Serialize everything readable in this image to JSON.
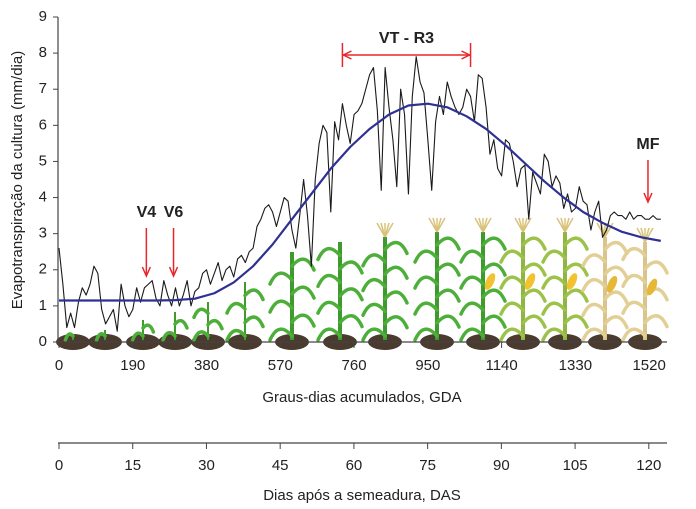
{
  "chart_data": {
    "type": "line",
    "ylabel": "Evapotranspiração da cultura (mm/dia)",
    "xlabel": "Graus-dias acumulados, GDA",
    "xlim": [
      0,
      1566
    ],
    "xticks": [
      0,
      190,
      380,
      570,
      760,
      950,
      1140,
      1330,
      1520
    ],
    "ylim": [
      0,
      9
    ],
    "yticks": [
      0,
      1,
      2,
      3,
      4,
      5,
      6,
      7,
      8,
      9
    ],
    "x2": {
      "label": "Dias após a semeadura, DAS",
      "xlim": [
        0,
        123.7
      ],
      "xticks": [
        0,
        15,
        30,
        45,
        60,
        75,
        90,
        105,
        120
      ]
    },
    "series": [
      {
        "color": "#1a1a1a",
        "x": [
          0,
          10,
          20,
          30,
          40,
          50,
          60,
          70,
          80,
          90,
          100,
          110,
          120,
          130,
          140,
          150,
          160,
          170,
          180,
          190,
          200,
          210,
          220,
          230,
          240,
          250,
          260,
          270,
          280,
          290,
          300,
          310,
          320,
          330,
          340,
          350,
          360,
          370,
          380,
          390,
          400,
          410,
          420,
          430,
          440,
          450,
          460,
          470,
          480,
          490,
          500,
          510,
          520,
          530,
          540,
          550,
          560,
          570,
          580,
          590,
          600,
          610,
          620,
          630,
          640,
          650,
          660,
          670,
          680,
          690,
          700,
          710,
          720,
          730,
          740,
          750,
          760,
          770,
          780,
          790,
          800,
          810,
          820,
          830,
          840,
          850,
          860,
          870,
          880,
          890,
          900,
          910,
          920,
          930,
          940,
          950,
          960,
          970,
          980,
          990,
          1000,
          1010,
          1020,
          1030,
          1040,
          1050,
          1060,
          1070,
          1080,
          1090,
          1100,
          1110,
          1120,
          1130,
          1140,
          1150,
          1160,
          1170,
          1180,
          1190,
          1200,
          1210,
          1220,
          1230,
          1240,
          1250,
          1260,
          1270,
          1280,
          1290,
          1300,
          1310,
          1320,
          1330,
          1340,
          1350,
          1360,
          1370,
          1380,
          1390,
          1400,
          1410,
          1420,
          1430,
          1440,
          1450,
          1460,
          1470,
          1480,
          1490,
          1500,
          1510,
          1520,
          1530,
          1540,
          1550
        ],
        "values": [
          2.6,
          1.6,
          0.4,
          0.8,
          0.4,
          1.1,
          1.5,
          1.3,
          1.6,
          2.1,
          1.9,
          0.9,
          0.5,
          0.7,
          0.9,
          0.3,
          1.6,
          1.0,
          0.7,
          0.9,
          1.5,
          1.1,
          1.5,
          1.6,
          1.7,
          1.2,
          1.0,
          1.7,
          1.3,
          1.0,
          1.5,
          1.0,
          1.3,
          1.7,
          1.0,
          1.4,
          1.5,
          1.9,
          2.0,
          1.6,
          1.9,
          2.2,
          1.7,
          2.0,
          2.1,
          1.8,
          2.3,
          2.4,
          2.2,
          2.5,
          2.6,
          3.2,
          3.4,
          3.7,
          3.8,
          3.6,
          3.2,
          3.6,
          4.0,
          3.9,
          3.1,
          2.6,
          3.5,
          4.5,
          3.5,
          2.1,
          4.5,
          5.5,
          6.0,
          5.8,
          3.6,
          6.1,
          5.6,
          6.6,
          6.0,
          5.5,
          6.3,
          6.4,
          6.6,
          7.0,
          7.4,
          7.6,
          6.4,
          4.2,
          7.6,
          6.5,
          5.6,
          4.3,
          7.0,
          6.3,
          4.1,
          6.8,
          7.9,
          7.2,
          6.9,
          5.6,
          4.2,
          6.1,
          6.8,
          6.3,
          7.2,
          6.8,
          6.5,
          6.3,
          6.5,
          7.0,
          6.8,
          6.1,
          7.4,
          7.3,
          6.5,
          5.2,
          5.6,
          4.8,
          4.6,
          5.6,
          5.5,
          5.0,
          4.3,
          4.8,
          4.9,
          3.4,
          4.7,
          4.4,
          4.1,
          5.2,
          5.0,
          4.3,
          4.6,
          4.4,
          3.7,
          4.1,
          3.6,
          3.7,
          4.3,
          3.9,
          3.8,
          3.1,
          3.6,
          3.9,
          2.9,
          3.1,
          3.5,
          3.6,
          3.5,
          3.5,
          3.4,
          3.6,
          3.4,
          3.5,
          3.5,
          3.4,
          3.4,
          3.5,
          3.4,
          3.4
        ]
      },
      {
        "color": "#2e3192",
        "x": [
          0,
          50,
          100,
          150,
          200,
          250,
          300,
          350,
          400,
          450,
          500,
          550,
          600,
          650,
          700,
          750,
          800,
          850,
          900,
          950,
          1000,
          1050,
          1100,
          1150,
          1200,
          1250,
          1300,
          1350,
          1400,
          1450,
          1500,
          1550
        ],
        "values": [
          1.15,
          1.15,
          1.15,
          1.15,
          1.15,
          1.15,
          1.16,
          1.2,
          1.35,
          1.65,
          2.1,
          2.7,
          3.4,
          4.1,
          4.8,
          5.4,
          5.9,
          6.3,
          6.55,
          6.6,
          6.5,
          6.25,
          5.9,
          5.45,
          4.95,
          4.45,
          4.0,
          3.6,
          3.3,
          3.05,
          2.9,
          2.8
        ]
      }
    ],
    "annotations": [
      {
        "text": "V4",
        "x": 225
      },
      {
        "text": "V6",
        "x": 295
      },
      {
        "text": "VT - R3",
        "x": [
          730,
          1060
        ]
      },
      {
        "text": "MF",
        "x": 1517
      }
    ]
  }
}
